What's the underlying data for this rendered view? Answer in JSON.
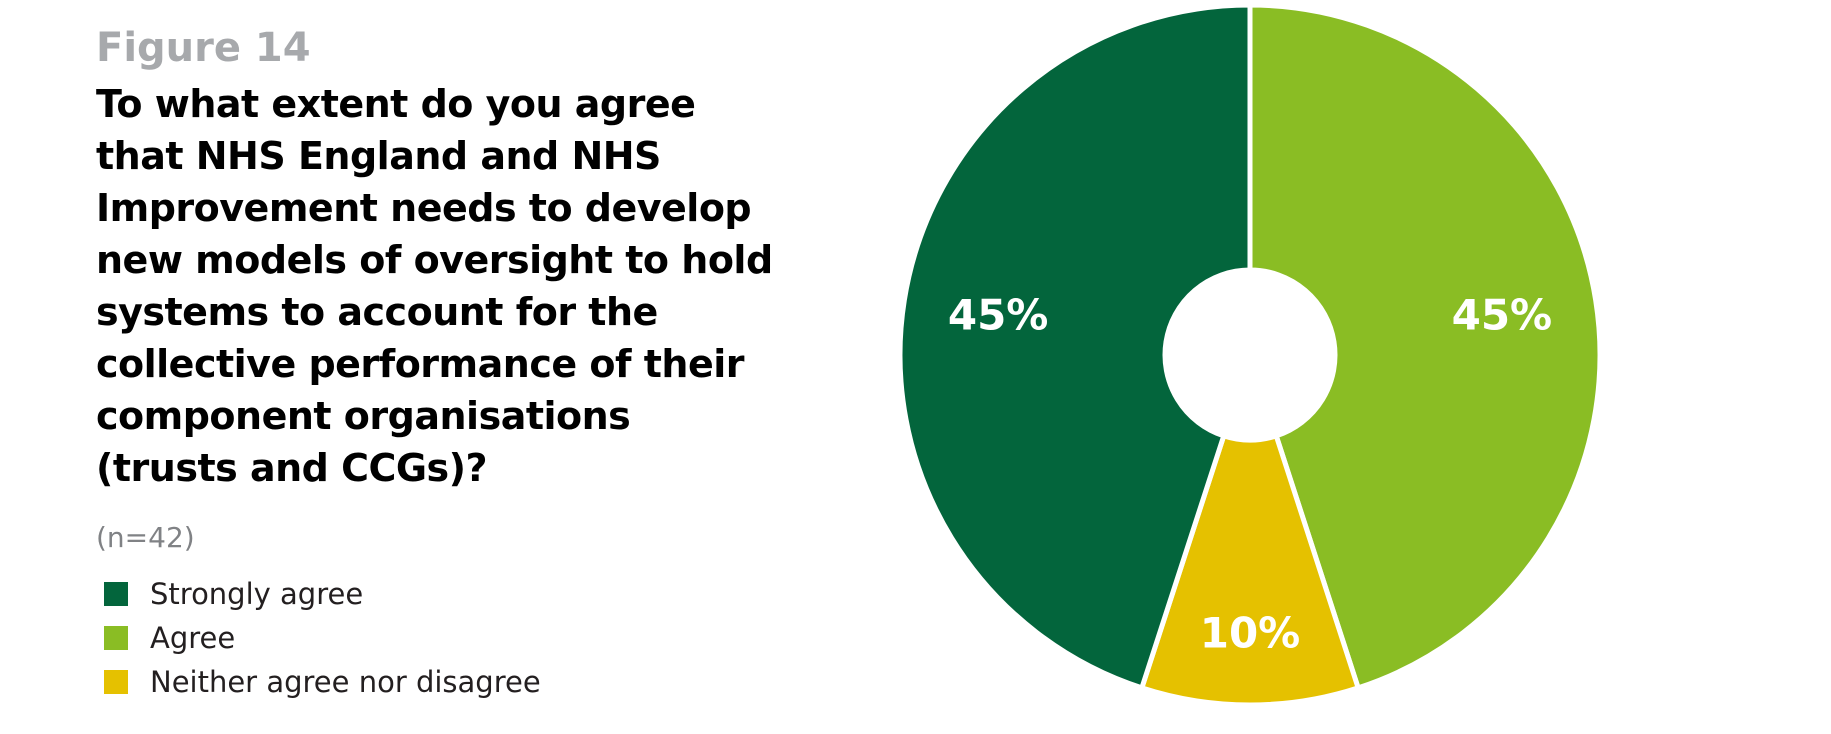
{
  "figure_label": "Figure 14",
  "question": "To what extent do you agree\nthat NHS England and NHS\nImprovement needs to develop\nnew models of oversight to hold\nsystems to account for the\ncollective performance of their\ncomponent organisations\n(trusts and CCGs)?",
  "sample_size": "(n=42)",
  "chart_data": {
    "type": "pie",
    "donut": true,
    "categories": [
      "Strongly agree",
      "Agree",
      "Neither agree nor disagree"
    ],
    "values": [
      45,
      45,
      10
    ],
    "data_labels": [
      "45%",
      "45%",
      "10%"
    ],
    "colors": [
      "#03653c",
      "#8abd24",
      "#e5c100"
    ],
    "legend_position": "left",
    "title": "To what extent do you agree that NHS England and NHS Improvement needs to develop new models of oversight to hold systems to account for the collective performance of their component organisations (trusts and CCGs)?"
  }
}
